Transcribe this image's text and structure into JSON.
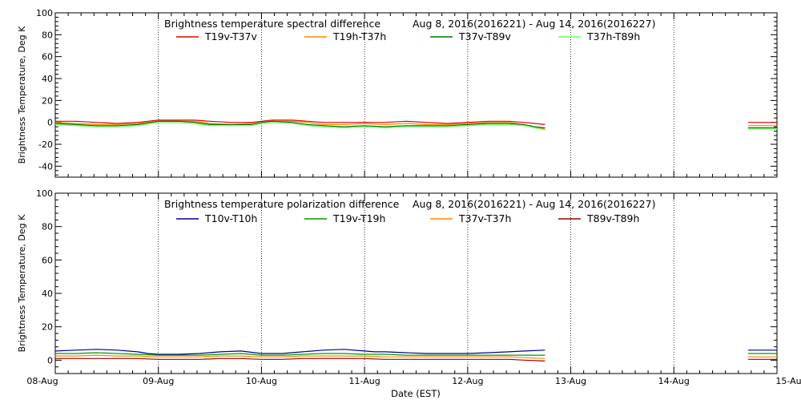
{
  "chart_data": [
    {
      "type": "line",
      "title": "Brightness temperature spectral difference",
      "date_range": "Aug  8, 2016(2016221) - Aug 14, 2016(2016227)",
      "ylabel": "Brightness Temperature, Deg K",
      "ylim": [
        -50,
        100
      ],
      "y_ticks": [
        "-40",
        "-20",
        "0",
        "20",
        "40",
        "60",
        "80",
        "100"
      ],
      "grid": "vertical dotted lines at day boundaries",
      "legend": "top",
      "series": [
        {
          "name": "T19v-T37v",
          "color": "#e60000",
          "segments": [
            [
              [
                0.0,
                1
              ],
              [
                0.2,
                1
              ],
              [
                0.4,
                0
              ],
              [
                0.6,
                -1
              ],
              [
                0.8,
                0
              ],
              [
                1.0,
                2
              ],
              [
                1.2,
                2
              ],
              [
                1.35,
                2
              ],
              [
                1.5,
                1
              ],
              [
                1.7,
                0
              ],
              [
                1.9,
                0
              ],
              [
                2.0,
                1
              ],
              [
                2.1,
                2
              ],
              [
                2.3,
                2
              ],
              [
                2.45,
                1
              ],
              [
                2.6,
                0
              ],
              [
                2.8,
                0
              ],
              [
                3.0,
                0
              ],
              [
                3.2,
                0
              ],
              [
                3.4,
                1
              ],
              [
                3.6,
                0
              ],
              [
                3.8,
                -1
              ],
              [
                4.0,
                0
              ],
              [
                4.2,
                1
              ],
              [
                4.4,
                1
              ],
              [
                4.55,
                0
              ],
              [
                4.65,
                -1
              ],
              [
                4.75,
                -2
              ]
            ],
            [
              [
                6.72,
                0
              ],
              [
                6.85,
                0
              ],
              [
                7.0,
                0
              ]
            ]
          ]
        },
        {
          "name": "T19h-T37h",
          "color": "#ff8800",
          "segments": [
            [
              [
                0.0,
                0
              ],
              [
                0.2,
                -1
              ],
              [
                0.4,
                -2
              ],
              [
                0.6,
                -2
              ],
              [
                0.8,
                -1
              ],
              [
                1.0,
                1
              ],
              [
                1.2,
                1
              ],
              [
                1.35,
                1
              ],
              [
                1.5,
                -1
              ],
              [
                1.7,
                -2
              ],
              [
                1.9,
                -1
              ],
              [
                2.0,
                0
              ],
              [
                2.1,
                1
              ],
              [
                2.3,
                1
              ],
              [
                2.45,
                0
              ],
              [
                2.6,
                -2
              ],
              [
                2.8,
                -2
              ],
              [
                3.0,
                -1
              ],
              [
                3.2,
                -2
              ],
              [
                3.4,
                -1
              ],
              [
                3.6,
                -2
              ],
              [
                3.8,
                -2
              ],
              [
                4.0,
                -1
              ],
              [
                4.2,
                0
              ],
              [
                4.4,
                0
              ],
              [
                4.55,
                -2
              ],
              [
                4.65,
                -4
              ],
              [
                4.75,
                -6
              ]
            ],
            [
              [
                6.72,
                -3
              ],
              [
                6.85,
                -3
              ],
              [
                7.0,
                -3
              ]
            ]
          ]
        },
        {
          "name": "T37v-T89v",
          "color": "#007700",
          "segments": [
            [
              [
                0.0,
                -1
              ],
              [
                0.2,
                -2
              ],
              [
                0.4,
                -3
              ],
              [
                0.6,
                -3
              ],
              [
                0.8,
                -2
              ],
              [
                1.0,
                1
              ],
              [
                1.2,
                1
              ],
              [
                1.35,
                0
              ],
              [
                1.5,
                -2
              ],
              [
                1.7,
                -2
              ],
              [
                1.9,
                -2
              ],
              [
                2.0,
                0
              ],
              [
                2.1,
                1
              ],
              [
                2.3,
                0
              ],
              [
                2.45,
                -2
              ],
              [
                2.6,
                -3
              ],
              [
                2.8,
                -4
              ],
              [
                3.0,
                -3
              ],
              [
                3.2,
                -4
              ],
              [
                3.4,
                -3
              ],
              [
                3.6,
                -3
              ],
              [
                3.8,
                -3
              ],
              [
                4.0,
                -2
              ],
              [
                4.2,
                -1
              ],
              [
                4.4,
                -1
              ],
              [
                4.55,
                -2
              ],
              [
                4.65,
                -4
              ],
              [
                4.75,
                -5
              ]
            ],
            [
              [
                6.72,
                -5
              ],
              [
                6.85,
                -5
              ],
              [
                7.0,
                -5
              ]
            ]
          ]
        },
        {
          "name": "T37h-T89h",
          "color": "#66ff66",
          "segments": [
            [
              [
                0.0,
                -2
              ],
              [
                0.2,
                -3
              ],
              [
                0.4,
                -4
              ],
              [
                0.6,
                -4
              ],
              [
                0.8,
                -3
              ],
              [
                1.0,
                0
              ],
              [
                1.2,
                0
              ],
              [
                1.35,
                -1
              ],
              [
                1.5,
                -3
              ],
              [
                1.7,
                -3
              ],
              [
                1.9,
                -3
              ],
              [
                2.0,
                -1
              ],
              [
                2.1,
                0
              ],
              [
                2.3,
                -1
              ],
              [
                2.45,
                -3
              ],
              [
                2.6,
                -4
              ],
              [
                2.8,
                -5
              ],
              [
                3.0,
                -4
              ],
              [
                3.2,
                -5
              ],
              [
                3.4,
                -4
              ],
              [
                3.6,
                -4
              ],
              [
                3.8,
                -4
              ],
              [
                4.0,
                -3
              ],
              [
                4.2,
                -2
              ],
              [
                4.4,
                -2
              ],
              [
                4.55,
                -3
              ],
              [
                4.65,
                -5
              ],
              [
                4.75,
                -7
              ]
            ],
            [
              [
                6.72,
                -6
              ],
              [
                6.85,
                -6
              ],
              [
                7.0,
                -6
              ]
            ]
          ]
        }
      ]
    },
    {
      "type": "line",
      "title": "Brightness temperature polarization difference",
      "date_range": "Aug  8, 2016(2016221) - Aug 14, 2016(2016227)",
      "ylabel": "Brightness Temperature, Deg K",
      "xlabel": "Date (EST)",
      "ylim": [
        -8,
        100
      ],
      "y_ticks": [
        "0",
        "20",
        "40",
        "60",
        "80",
        "100"
      ],
      "x_ticks": [
        "08-Aug",
        "09-Aug",
        "10-Aug",
        "11-Aug",
        "12-Aug",
        "13-Aug",
        "14-Aug",
        "15-Aug"
      ],
      "grid": "vertical dotted lines at day boundaries",
      "legend": "top",
      "series": [
        {
          "name": "T10v-T10h",
          "color": "#000099",
          "segments": [
            [
              [
                0.0,
                5.5
              ],
              [
                0.2,
                6
              ],
              [
                0.4,
                6.5
              ],
              [
                0.6,
                6
              ],
              [
                0.8,
                5
              ],
              [
                0.9,
                4
              ],
              [
                1.0,
                3.5
              ],
              [
                1.2,
                3.5
              ],
              [
                1.4,
                4
              ],
              [
                1.6,
                5
              ],
              [
                1.8,
                5.5
              ],
              [
                2.0,
                4
              ],
              [
                2.2,
                4
              ],
              [
                2.4,
                5
              ],
              [
                2.6,
                6
              ],
              [
                2.8,
                6.5
              ],
              [
                3.0,
                5.5
              ],
              [
                3.1,
                5
              ],
              [
                3.2,
                5
              ],
              [
                3.4,
                4.5
              ],
              [
                3.6,
                4
              ],
              [
                3.8,
                4
              ],
              [
                4.0,
                4
              ],
              [
                4.2,
                4.5
              ],
              [
                4.4,
                5
              ],
              [
                4.55,
                5.5
              ],
              [
                4.75,
                6
              ]
            ],
            [
              [
                6.72,
                6
              ],
              [
                6.85,
                6
              ],
              [
                7.0,
                6
              ]
            ]
          ]
        },
        {
          "name": "T19v-T19h",
          "color": "#009900",
          "segments": [
            [
              [
                0.0,
                4
              ],
              [
                0.2,
                4
              ],
              [
                0.4,
                4.5
              ],
              [
                0.6,
                4
              ],
              [
                0.8,
                3.5
              ],
              [
                1.0,
                3
              ],
              [
                1.2,
                3
              ],
              [
                1.4,
                3
              ],
              [
                1.6,
                3.5
              ],
              [
                1.8,
                4
              ],
              [
                2.0,
                3
              ],
              [
                2.2,
                3
              ],
              [
                2.4,
                3.5
              ],
              [
                2.6,
                4
              ],
              [
                2.8,
                4
              ],
              [
                3.0,
                3.5
              ],
              [
                3.2,
                3.5
              ],
              [
                3.4,
                3
              ],
              [
                3.6,
                3
              ],
              [
                3.8,
                3
              ],
              [
                4.0,
                3
              ],
              [
                4.2,
                3
              ],
              [
                4.4,
                3
              ],
              [
                4.55,
                3
              ],
              [
                4.75,
                3
              ]
            ],
            [
              [
                6.72,
                4
              ],
              [
                6.85,
                4
              ],
              [
                7.0,
                4
              ]
            ]
          ]
        },
        {
          "name": "T37v-T37h",
          "color": "#ff8800",
          "segments": [
            [
              [
                0.0,
                2.5
              ],
              [
                0.2,
                2.5
              ],
              [
                0.4,
                3
              ],
              [
                0.6,
                2.5
              ],
              [
                0.8,
                2.5
              ],
              [
                1.0,
                2
              ],
              [
                1.2,
                2
              ],
              [
                1.4,
                2
              ],
              [
                1.6,
                2.5
              ],
              [
                1.8,
                2.5
              ],
              [
                2.0,
                2
              ],
              [
                2.2,
                2
              ],
              [
                2.4,
                2.5
              ],
              [
                2.6,
                2.5
              ],
              [
                2.8,
                2.5
              ],
              [
                3.0,
                2.5
              ],
              [
                3.2,
                2
              ],
              [
                3.4,
                2
              ],
              [
                3.6,
                2
              ],
              [
                3.8,
                2
              ],
              [
                4.0,
                2
              ],
              [
                4.2,
                2
              ],
              [
                4.4,
                2
              ],
              [
                4.55,
                1.5
              ],
              [
                4.75,
                1
              ]
            ],
            [
              [
                6.72,
                2
              ],
              [
                6.85,
                2
              ],
              [
                7.0,
                2
              ]
            ]
          ]
        },
        {
          "name": "T89v-T89h",
          "color": "#990000",
          "segments": [
            [
              [
                0.0,
                1
              ],
              [
                0.2,
                1
              ],
              [
                0.4,
                1
              ],
              [
                0.6,
                1
              ],
              [
                0.8,
                1
              ],
              [
                1.0,
                0.5
              ],
              [
                1.2,
                0.5
              ],
              [
                1.4,
                0.5
              ],
              [
                1.6,
                1
              ],
              [
                1.8,
                1
              ],
              [
                2.0,
                0.5
              ],
              [
                2.2,
                0.5
              ],
              [
                2.4,
                1
              ],
              [
                2.6,
                1
              ],
              [
                2.8,
                1
              ],
              [
                3.0,
                1
              ],
              [
                3.2,
                0.5
              ],
              [
                3.4,
                0.5
              ],
              [
                3.6,
                0.5
              ],
              [
                3.8,
                0.5
              ],
              [
                4.0,
                0.5
              ],
              [
                4.2,
                0.5
              ],
              [
                4.4,
                0.5
              ],
              [
                4.55,
                0
              ],
              [
                4.75,
                -0.5
              ]
            ],
            [
              [
                6.72,
                0.5
              ],
              [
                6.85,
                0.5
              ],
              [
                7.0,
                0.5
              ]
            ]
          ]
        }
      ]
    }
  ]
}
